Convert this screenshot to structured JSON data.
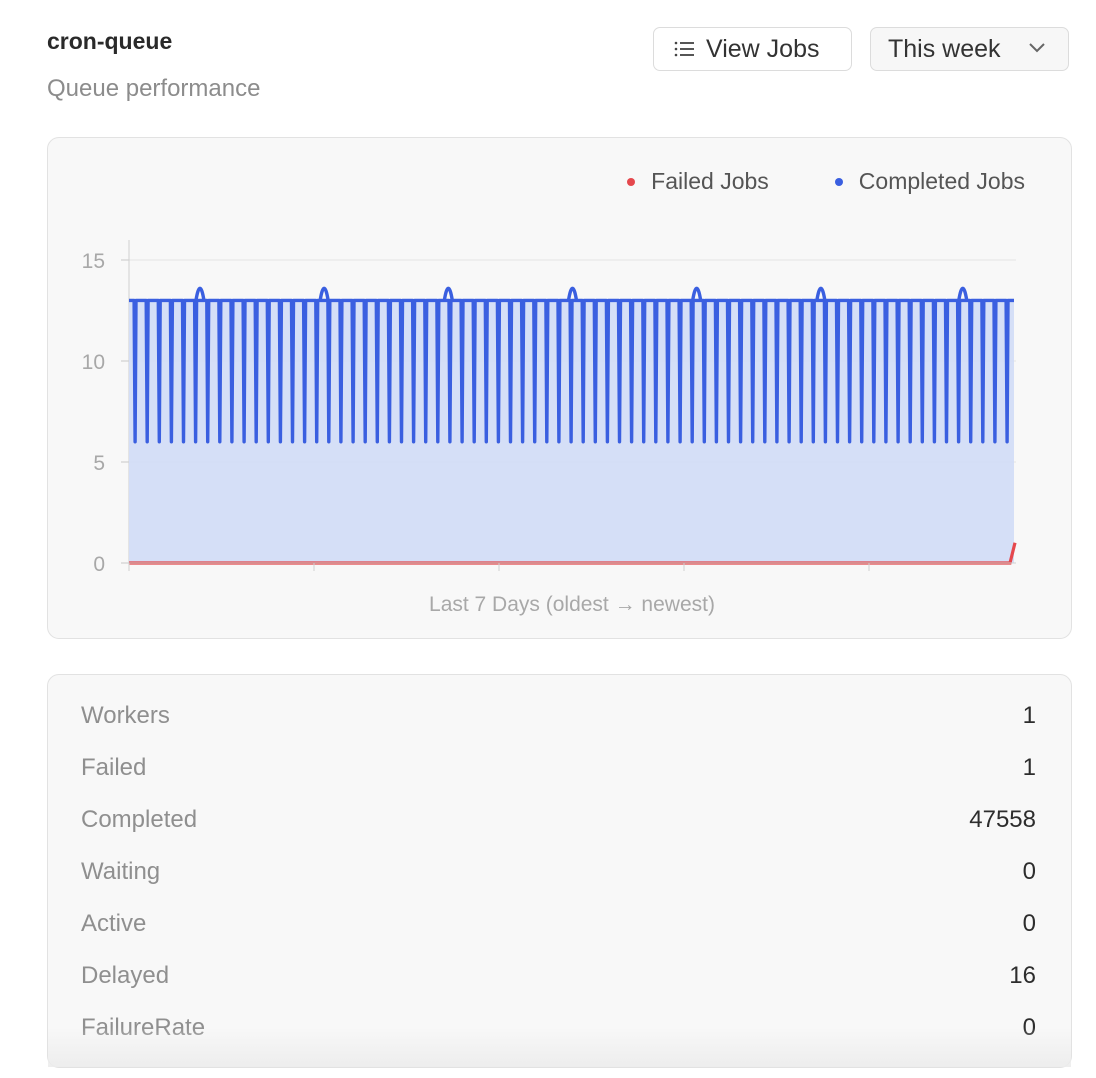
{
  "header": {
    "title": "cron-queue",
    "subtitle": "Queue performance",
    "view_jobs_label": "View Jobs",
    "range_label": "This week"
  },
  "chart_data": {
    "type": "area",
    "xlabel": "Last 7 Days (oldest → newest)",
    "ylabel": "",
    "ylim": [
      0,
      16
    ],
    "yticks": [
      0,
      5,
      10,
      15
    ],
    "grid": "horizontal",
    "legend_position": "top-right",
    "series": [
      {
        "name": "Failed Jobs",
        "color": "#e5484d",
        "pattern": "constant 0, rising to 1 at the newest point",
        "values_summary": {
          "min": 0,
          "max": 1,
          "last": 1
        }
      },
      {
        "name": "Completed Jobs",
        "color": "#3a5fe0",
        "fill": "#d3ddf7",
        "pattern": "oscillating between 6 and 13 with periodic peaks of 14",
        "values_summary": {
          "low": 6,
          "high": 13,
          "peak": 14,
          "first": 13,
          "last": 13
        }
      }
    ]
  },
  "stats": [
    {
      "label": "Workers",
      "value": "1"
    },
    {
      "label": "Failed",
      "value": "1"
    },
    {
      "label": "Completed",
      "value": "47558"
    },
    {
      "label": "Waiting",
      "value": "0"
    },
    {
      "label": "Active",
      "value": "0"
    },
    {
      "label": "Delayed",
      "value": "16"
    },
    {
      "label": "FailureRate",
      "value": "0"
    }
  ]
}
